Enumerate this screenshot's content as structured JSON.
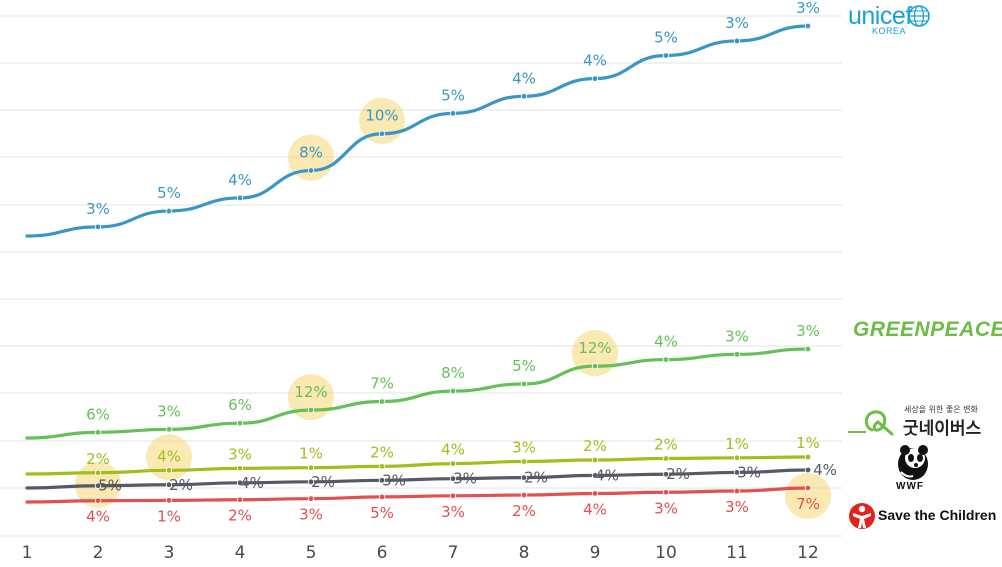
{
  "chart_data": {
    "type": "line",
    "x": [
      "1",
      "2",
      "3",
      "4",
      "5",
      "6",
      "7",
      "8",
      "9",
      "10",
      "11",
      "12"
    ],
    "title": "",
    "xlabel": "",
    "ylabel": "",
    "grid": true,
    "series": [
      {
        "name": "unicef KOREA",
        "color": "#3a96c4",
        "values": [
          100,
          103,
          108.2,
          112.5,
          121.5,
          133.6,
          140.3,
          145.9,
          151.7,
          159.3,
          164.1,
          169.0
        ],
        "labels": [
          "",
          "3%",
          "5%",
          "4%",
          "8%",
          "10%",
          "5%",
          "4%",
          "4%",
          "5%",
          "3%",
          "3%"
        ],
        "highlight": [
          false,
          false,
          false,
          false,
          true,
          true,
          false,
          false,
          false,
          false,
          false,
          false
        ]
      },
      {
        "name": "GREENPEACE",
        "color": "#66c05a",
        "values": [
          100,
          106,
          109.2,
          115.7,
          129.6,
          138.7,
          149.8,
          157.3,
          176.2,
          183.2,
          188.7,
          194.4
        ],
        "labels": [
          "",
          "6%",
          "3%",
          "6%",
          "12%",
          "7%",
          "8%",
          "5%",
          "12%",
          "4%",
          "3%",
          "3%"
        ],
        "highlight": [
          false,
          false,
          false,
          false,
          true,
          false,
          false,
          false,
          true,
          false,
          false,
          false
        ]
      },
      {
        "name": "굿네이버스",
        "color": "#a0bf1a",
        "values": [
          100,
          102,
          106.1,
          109.3,
          110.4,
          112.6,
          117.1,
          120.6,
          123.0,
          125.5,
          126.7,
          128.0
        ],
        "labels": [
          "",
          "2%",
          "4%",
          "3%",
          "1%",
          "2%",
          "4%",
          "3%",
          "2%",
          "2%",
          "1%",
          "1%"
        ],
        "highlight": [
          false,
          false,
          true,
          false,
          false,
          false,
          false,
          false,
          false,
          false,
          false,
          false
        ]
      },
      {
        "name": "WWF",
        "color": "#555a64",
        "values": [
          100,
          105,
          107.1,
          111.4,
          113.6,
          117.0,
          120.5,
          122.9,
          127.8,
          130.4,
          134.3,
          139.7
        ],
        "labels": [
          "",
          "5%",
          "2%",
          "4%",
          "2%",
          "3%",
          "3%",
          "2%",
          "4%",
          "2%",
          "3%",
          "4%"
        ],
        "highlight": [
          false,
          true,
          false,
          false,
          false,
          false,
          false,
          false,
          false,
          false,
          false,
          false
        ]
      },
      {
        "name": "Save the Children",
        "color": "#e2504f",
        "values": [
          100,
          104,
          105.0,
          107.1,
          110.3,
          115.9,
          119.3,
          121.7,
          126.6,
          130.4,
          134.3,
          143.7
        ],
        "labels": [
          "",
          "4%",
          "1%",
          "2%",
          "3%",
          "5%",
          "3%",
          "2%",
          "4%",
          "3%",
          "3%",
          "7%"
        ],
        "highlight": [
          false,
          false,
          false,
          false,
          false,
          false,
          false,
          false,
          false,
          false,
          false,
          true
        ]
      }
    ]
  },
  "logos": {
    "unicef": {
      "word": "unicef",
      "sub": "KOREA",
      "icon": "globe-icon"
    },
    "greenpeace": {
      "word": "GREENPEACE"
    },
    "goodneighbors": {
      "small": "세상을 위한 좋은 변화",
      "big": "굿네이버스",
      "icon": "goodneighbors-mark-icon"
    },
    "wwf": {
      "word": "WWF",
      "icon": "panda-icon"
    },
    "savethechildren": {
      "word": "Save the Children",
      "icon": "stc-figure-icon"
    }
  }
}
